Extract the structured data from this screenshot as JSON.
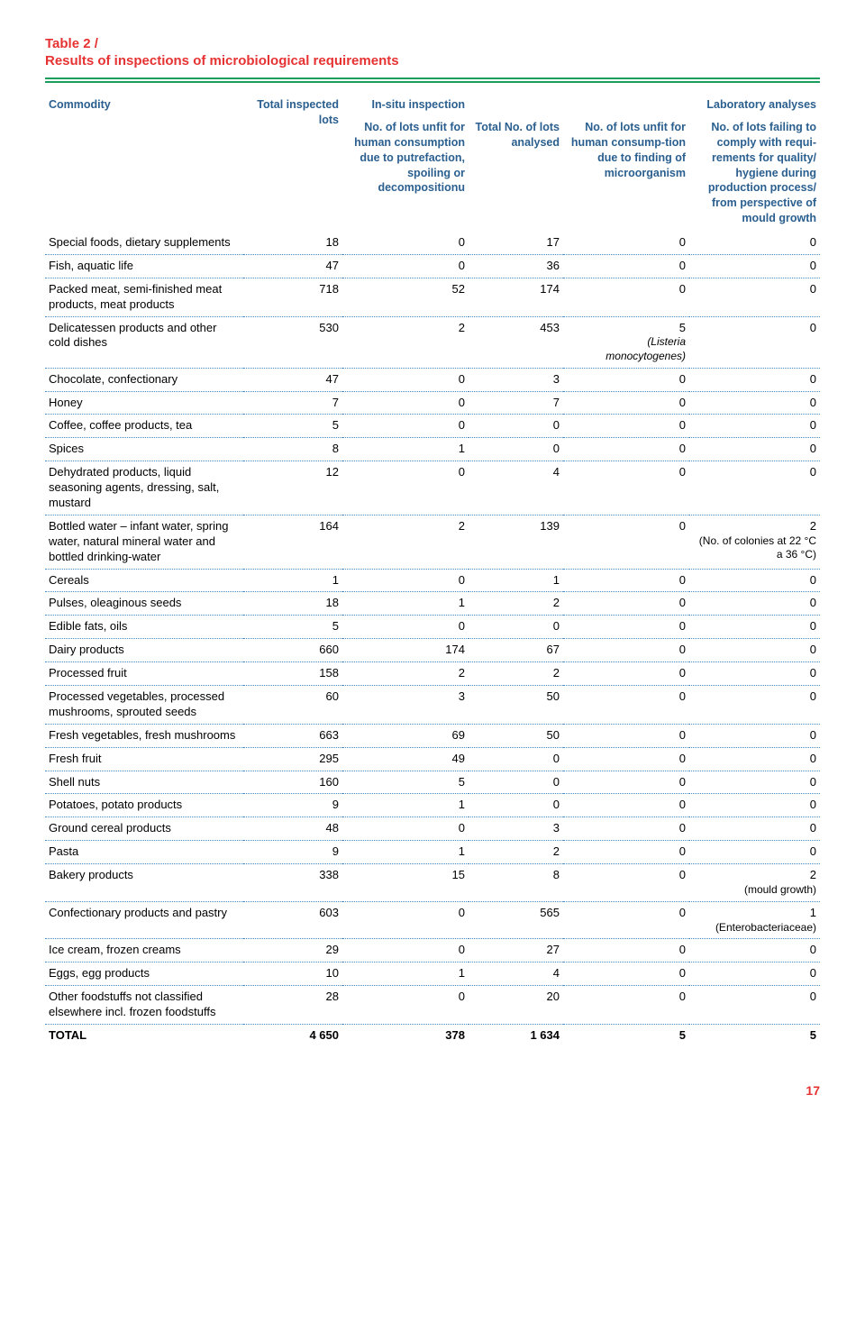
{
  "table_label": "Table 2 /",
  "table_title": "Results of inspections of microbiological requirements",
  "page_number": "17",
  "colors": {
    "accent_red": "#e63232",
    "header_blue": "#2a5f8f",
    "rule_green": "#1a9e5c",
    "dotted_blue": "#4a8cc4"
  },
  "header": {
    "commodity": "Commodity",
    "total_inspected": "Total inspected lots",
    "insitu": "In-situ inspection",
    "lab": "Laboratory analyses",
    "c3": "No. of lots unfit for human consumpti­on due to putrefac­tion, spoiling or decompositionu",
    "c4": "Total No. of lots analysed",
    "c5": "No. of lots unfit for human consump-ti­on due to finding of microorganism",
    "c6": "No. of lots failing to comply with requi­rements for quality/ hygiene during production process/ from perspective of mould growth"
  },
  "rows": [
    {
      "name": "Special foods, dietary supple­ments",
      "c2": "18",
      "c3": "0",
      "c4": "17",
      "c5": "0",
      "c6": "0"
    },
    {
      "name": "Fish, aquatic life",
      "c2": "47",
      "c3": "0",
      "c4": "36",
      "c5": "0",
      "c6": "0"
    },
    {
      "name": "Packed meat, semi-finished meat products, meat products",
      "c2": "718",
      "c3": "52",
      "c4": "174",
      "c5": "0",
      "c6": "0"
    },
    {
      "name": "Delicatessen products and other cold dishes",
      "c2": "530",
      "c3": "2",
      "c4": "453",
      "c5": "5",
      "c5_note": "(Listeria monocytogenes)",
      "c5_note_em": true,
      "c6": "0"
    },
    {
      "name": "Chocolate, confectionary",
      "c2": "47",
      "c3": "0",
      "c4": "3",
      "c5": "0",
      "c6": "0"
    },
    {
      "name": "Honey",
      "c2": "7",
      "c3": "0",
      "c4": "7",
      "c5": "0",
      "c6": "0"
    },
    {
      "name": "Coffee, coffee products, tea",
      "c2": "5",
      "c3": "0",
      "c4": "0",
      "c5": "0",
      "c6": "0"
    },
    {
      "name": "Spices",
      "c2": "8",
      "c3": "1",
      "c4": "0",
      "c5": "0",
      "c6": "0"
    },
    {
      "name": "Dehydrated products, liquid seasoning agents, dressing, salt, mustard",
      "c2": "12",
      "c3": "0",
      "c4": "4",
      "c5": "0",
      "c6": "0"
    },
    {
      "name": "Bottled water – infant water, spring water, natural mineral water and bottled drinking-water",
      "c2": "164",
      "c3": "2",
      "c4": "139",
      "c5": "0",
      "c6": "2",
      "c6_note": "(No. of colonies at 22 °C a 36 °C)"
    },
    {
      "name": "Cereals",
      "c2": "1",
      "c3": "0",
      "c4": "1",
      "c5": "0",
      "c6": "0"
    },
    {
      "name": "Pulses, oleaginous seeds",
      "c2": "18",
      "c3": "1",
      "c4": "2",
      "c5": "0",
      "c6": "0"
    },
    {
      "name": "Edible fats, oils",
      "c2": "5",
      "c3": "0",
      "c4": "0",
      "c5": "0",
      "c6": "0"
    },
    {
      "name": "Dairy products",
      "c2": "660",
      "c3": "174",
      "c4": "67",
      "c5": "0",
      "c6": "0"
    },
    {
      "name": "Processed fruit",
      "c2": "158",
      "c3": "2",
      "c4": "2",
      "c5": "0",
      "c6": "0"
    },
    {
      "name": "Processed vegetables, processed mushrooms, sprouted seeds",
      "c2": "60",
      "c3": "3",
      "c4": "50",
      "c5": "0",
      "c6": "0"
    },
    {
      "name": "Fresh vegetables, fresh mushrooms",
      "c2": "663",
      "c3": "69",
      "c4": "50",
      "c5": "0",
      "c6": "0"
    },
    {
      "name": "Fresh fruit",
      "c2": "295",
      "c3": "49",
      "c4": "0",
      "c5": "0",
      "c6": "0"
    },
    {
      "name": "Shell nuts",
      "c2": "160",
      "c3": "5",
      "c4": "0",
      "c5": "0",
      "c6": "0"
    },
    {
      "name": "Potatoes, potato products",
      "c2": "9",
      "c3": "1",
      "c4": "0",
      "c5": "0",
      "c6": "0"
    },
    {
      "name": "Ground cereal products",
      "c2": "48",
      "c3": "0",
      "c4": "3",
      "c5": "0",
      "c6": "0"
    },
    {
      "name": "Pasta",
      "c2": "9",
      "c3": "1",
      "c4": "2",
      "c5": "0",
      "c6": "0"
    },
    {
      "name": "Bakery products",
      "c2": "338",
      "c3": "15",
      "c4": "8",
      "c5": "0",
      "c6": "2",
      "c6_note": "(mould growth)"
    },
    {
      "name": "Confectionary products and pastry",
      "c2": "603",
      "c3": "0",
      "c4": "565",
      "c5": "0",
      "c6": "1",
      "c6_note": "(Enterobacteriaceae)"
    },
    {
      "name": "Ice cream, frozen creams",
      "c2": "29",
      "c3": "0",
      "c4": "27",
      "c5": "0",
      "c6": "0"
    },
    {
      "name": "Eggs, egg products",
      "c2": "10",
      "c3": "1",
      "c4": "4",
      "c5": "0",
      "c6": "0"
    },
    {
      "name": "Other foodstuffs not classified elsewhere incl. frozen foodstuffs",
      "c2": "28",
      "c3": "0",
      "c4": "20",
      "c5": "0",
      "c6": "0"
    }
  ],
  "total_row": {
    "name": "TOTAL",
    "c2": "4 650",
    "c3": "378",
    "c4": "1 634",
    "c5": "5",
    "c6": "5"
  }
}
